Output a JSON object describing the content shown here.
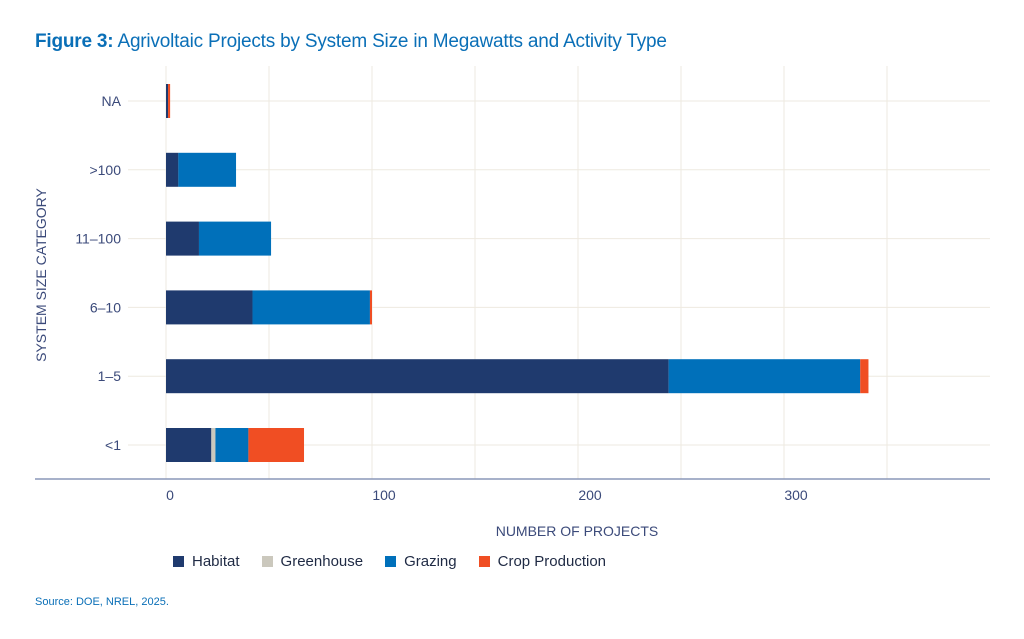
{
  "title_prefix": "Figure 3:",
  "title": "Agrivoltaic Projects by System Size in Megawatts and Activity Type",
  "source": "Source: DOE, NREL, 2025.",
  "chart_data": {
    "type": "bar",
    "orientation": "horizontal",
    "stacked": true,
    "xlabel": "NUMBER OF PROJECTS",
    "ylabel": "SYSTEM SIZE CATEGORY",
    "categories": [
      "NA",
      ">100",
      "11–100",
      "6–10",
      "1–5",
      "<1"
    ],
    "xlim": [
      0,
      400
    ],
    "xticks": [
      0,
      100,
      200,
      300
    ],
    "grid": true,
    "legend_placement": "bottom",
    "series": [
      {
        "name": "Habitat",
        "color": "#1f3a6e",
        "values": [
          1,
          6,
          16,
          42,
          244,
          22
        ]
      },
      {
        "name": "Greenhouse",
        "color": "#cbc8bd",
        "values": [
          0,
          0,
          0,
          0,
          0,
          2
        ]
      },
      {
        "name": "Grazing",
        "color": "#0070ba",
        "values": [
          0,
          28,
          35,
          57,
          93,
          16
        ]
      },
      {
        "name": "Crop Production",
        "color": "#f04e23",
        "values": [
          1,
          0,
          0,
          1,
          4,
          27
        ]
      }
    ]
  }
}
